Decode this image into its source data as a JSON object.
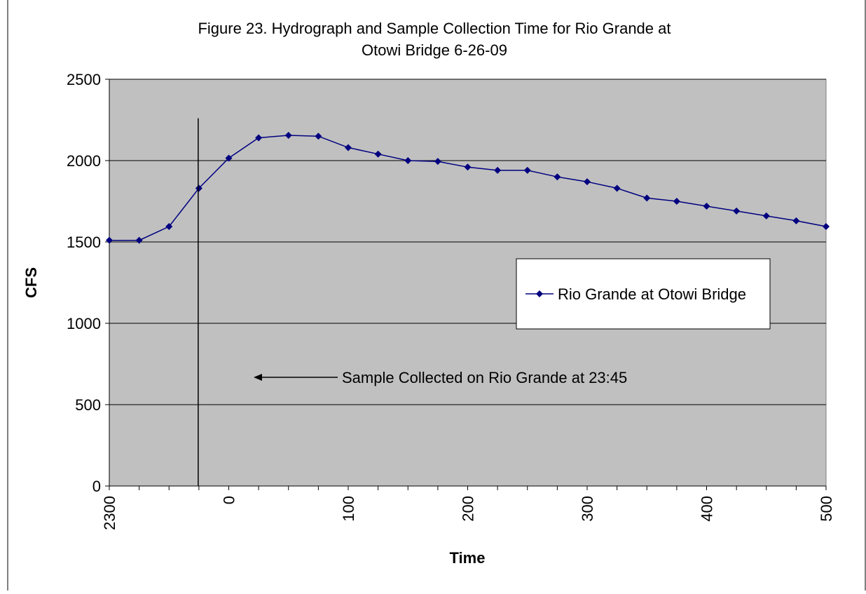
{
  "chart_data": {
    "type": "line",
    "title_line1": "Figure 23. Hydrograph and Sample Collection Time for Rio Grande at",
    "title_line2": "Otowi Bridge 6-26-09",
    "xlabel": "Time",
    "ylabel": "CFS",
    "ylim": [
      0,
      2500
    ],
    "yticks": [
      "0",
      "500",
      "1000",
      "1500",
      "2000",
      "2500"
    ],
    "xtick_labels": [
      "2300",
      "0",
      "100",
      "200",
      "300",
      "400",
      "500"
    ],
    "xtick_positions": [
      0,
      4,
      8,
      12,
      16,
      20,
      24
    ],
    "grid": "horizontal",
    "legend_position": "right",
    "series": [
      {
        "name": "Rio Grande at Otowi Bridge",
        "color": "#000080",
        "x": [
          "2300",
          "2315",
          "2330",
          "2345",
          "0",
          "15",
          "30",
          "45",
          "100",
          "115",
          "130",
          "145",
          "200",
          "215",
          "230",
          "245",
          "300",
          "315",
          "330",
          "345",
          "400",
          "415",
          "430",
          "445",
          "500"
        ],
        "values": [
          1510,
          1510,
          1595,
          1830,
          2015,
          2140,
          2155,
          2150,
          2080,
          2040,
          2000,
          1995,
          1960,
          1940,
          1940,
          1900,
          1870,
          1830,
          1770,
          1750,
          1720,
          1690,
          1660,
          1630,
          1595
        ]
      }
    ],
    "annotation": {
      "text": "Sample Collected on Rio Grande at 23:45",
      "time": "23:45",
      "x_index": 3
    }
  }
}
